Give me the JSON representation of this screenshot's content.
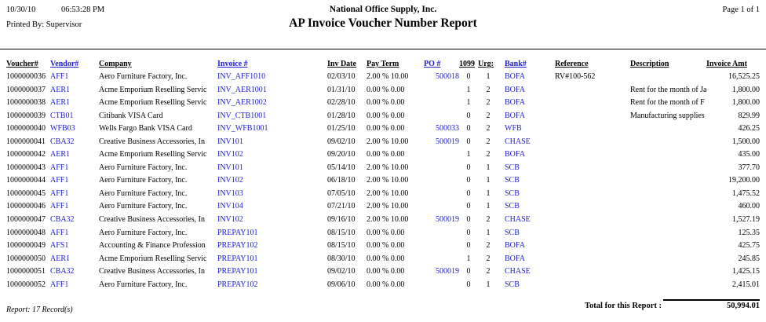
{
  "header": {
    "date": "10/30/10",
    "time": "06:53:28 PM",
    "printed_by": "Printed By: Supervisor",
    "company": "National Office Supply, Inc.",
    "title": "AP Invoice Voucher Number Report",
    "page": "Page 1 of 1"
  },
  "colors": {
    "link_blue": "#2020d0"
  },
  "table": {
    "columns": [
      "Voucher#",
      "Vendor#",
      "Company",
      "Invoice #",
      "Inv Date",
      "Pay Term",
      "PO #",
      "1099",
      "Urg:",
      "Bank#",
      "Reference",
      "Description",
      "Invoice Amt"
    ],
    "rows": [
      {
        "voucher": "1000000036",
        "vendor": "AFF1",
        "company": "Aero Furniture Factory, Inc.",
        "invoice": "INV_AFF1010",
        "inv_date": "02/03/10",
        "pay_term": "2.00 % 10.00",
        "po": "500018",
        "x1099": "0",
        "urg": "1",
        "bank": "BOFA",
        "reference": "RV#100-562",
        "description": "",
        "amount": "16,525.25"
      },
      {
        "voucher": "1000000037",
        "vendor": "AER1",
        "company": "Acme Emporium Reselling Servic",
        "invoice": "INV_AER1001",
        "inv_date": "01/31/10",
        "pay_term": "0.00 % 0.00",
        "po": "",
        "x1099": "1",
        "urg": "2",
        "bank": "BOFA",
        "reference": "",
        "description": "Rent for the month of Ja",
        "amount": "1,800.00"
      },
      {
        "voucher": "1000000038",
        "vendor": "AER1",
        "company": "Acme Emporium Reselling Servic",
        "invoice": "INV_AER1002",
        "inv_date": "02/28/10",
        "pay_term": "0.00 % 0.00",
        "po": "",
        "x1099": "1",
        "urg": "2",
        "bank": "BOFA",
        "reference": "",
        "description": "Rent for the month of F",
        "amount": "1,800.00"
      },
      {
        "voucher": "1000000039",
        "vendor": "CTB01",
        "company": "Citibank VISA Card",
        "invoice": "INV_CTB1001",
        "inv_date": "01/28/10",
        "pay_term": "0.00 % 0.00",
        "po": "",
        "x1099": "0",
        "urg": "2",
        "bank": "BOFA",
        "reference": "",
        "description": "Manufacturing supplies",
        "amount": "829.99"
      },
      {
        "voucher": "1000000040",
        "vendor": "WFB03",
        "company": "Wells Fargo Bank VISA Card",
        "invoice": "INV_WFB1001",
        "inv_date": "01/25/10",
        "pay_term": "0.00 % 0.00",
        "po": "500033",
        "x1099": "0",
        "urg": "2",
        "bank": "WFB",
        "reference": "",
        "description": "",
        "amount": "426.25"
      },
      {
        "voucher": "1000000041",
        "vendor": "CBA32",
        "company": "Creative Business Accessories, In",
        "invoice": "INV101",
        "inv_date": "09/02/10",
        "pay_term": "2.00 % 10.00",
        "po": "500019",
        "x1099": "0",
        "urg": "2",
        "bank": "CHASE",
        "reference": "",
        "description": "",
        "amount": "1,500.00"
      },
      {
        "voucher": "1000000042",
        "vendor": "AER1",
        "company": "Acme Emporium Reselling Servic",
        "invoice": "INV102",
        "inv_date": "09/20/10",
        "pay_term": "0.00 % 0.00",
        "po": "",
        "x1099": "1",
        "urg": "2",
        "bank": "BOFA",
        "reference": "",
        "description": "",
        "amount": "435.00"
      },
      {
        "voucher": "1000000043",
        "vendor": "AFF1",
        "company": "Aero Furniture Factory, Inc.",
        "invoice": "INV101",
        "inv_date": "05/14/10",
        "pay_term": "2.00 % 10.00",
        "po": "",
        "x1099": "0",
        "urg": "1",
        "bank": "SCB",
        "reference": "",
        "description": "",
        "amount": "377.70"
      },
      {
        "voucher": "1000000044",
        "vendor": "AFF1",
        "company": "Aero Furniture Factory, Inc.",
        "invoice": "INV102",
        "inv_date": "06/18/10",
        "pay_term": "2.00 % 10.00",
        "po": "",
        "x1099": "0",
        "urg": "1",
        "bank": "SCB",
        "reference": "",
        "description": "",
        "amount": "19,200.00"
      },
      {
        "voucher": "1000000045",
        "vendor": "AFF1",
        "company": "Aero Furniture Factory, Inc.",
        "invoice": "INV103",
        "inv_date": "07/05/10",
        "pay_term": "2.00 % 10.00",
        "po": "",
        "x1099": "0",
        "urg": "1",
        "bank": "SCB",
        "reference": "",
        "description": "",
        "amount": "1,475.52"
      },
      {
        "voucher": "1000000046",
        "vendor": "AFF1",
        "company": "Aero Furniture Factory, Inc.",
        "invoice": "INV104",
        "inv_date": "07/21/10",
        "pay_term": "2.00 % 10.00",
        "po": "",
        "x1099": "0",
        "urg": "1",
        "bank": "SCB",
        "reference": "",
        "description": "",
        "amount": "460.00"
      },
      {
        "voucher": "1000000047",
        "vendor": "CBA32",
        "company": "Creative Business Accessories, In",
        "invoice": "INV102",
        "inv_date": "09/16/10",
        "pay_term": "2.00 % 10.00",
        "po": "500019",
        "x1099": "0",
        "urg": "2",
        "bank": "CHASE",
        "reference": "",
        "description": "",
        "amount": "1,527.19"
      },
      {
        "voucher": "1000000048",
        "vendor": "AFF1",
        "company": "Aero Furniture Factory, Inc.",
        "invoice": "PREPAY101",
        "inv_date": "08/15/10",
        "pay_term": "0.00 % 0.00",
        "po": "",
        "x1099": "0",
        "urg": "1",
        "bank": "SCB",
        "reference": "",
        "description": "",
        "amount": "125.35"
      },
      {
        "voucher": "1000000049",
        "vendor": "AFS1",
        "company": "Accounting & Finance Profession",
        "invoice": "PREPAY102",
        "inv_date": "08/15/10",
        "pay_term": "0.00 % 0.00",
        "po": "",
        "x1099": "0",
        "urg": "2",
        "bank": "BOFA",
        "reference": "",
        "description": "",
        "amount": "425.75"
      },
      {
        "voucher": "1000000050",
        "vendor": "AER1",
        "company": "Acme Emporium Reselling Servic",
        "invoice": "PREPAY101",
        "inv_date": "08/30/10",
        "pay_term": "0.00 % 0.00",
        "po": "",
        "x1099": "1",
        "urg": "2",
        "bank": "BOFA",
        "reference": "",
        "description": "",
        "amount": "245.85"
      },
      {
        "voucher": "1000000051",
        "vendor": "CBA32",
        "company": "Creative Business Accessories, In",
        "invoice": "PREPAY101",
        "inv_date": "09/02/10",
        "pay_term": "0.00 % 0.00",
        "po": "500019",
        "x1099": "0",
        "urg": "2",
        "bank": "CHASE",
        "reference": "",
        "description": "",
        "amount": "1,425.15"
      },
      {
        "voucher": "1000000052",
        "vendor": "AFF1",
        "company": "Aero Furniture Factory, Inc.",
        "invoice": "PREPAY102",
        "inv_date": "09/06/10",
        "pay_term": "0.00 % 0.00",
        "po": "",
        "x1099": "0",
        "urg": "1",
        "bank": "SCB",
        "reference": "",
        "description": "",
        "amount": "2,415.01"
      }
    ]
  },
  "footer": {
    "record_count": "Report: 17 Record(s)",
    "total_label": "Total for this Report :",
    "total_amount": "50,994.01"
  }
}
